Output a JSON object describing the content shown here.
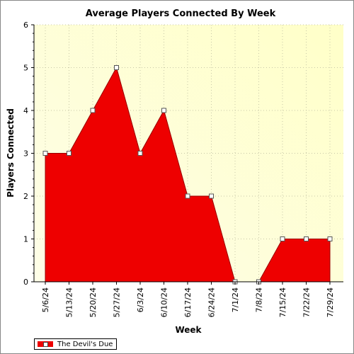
{
  "chart_data": {
    "type": "area",
    "title": "Average Players Connected By Week",
    "xlabel": "Week",
    "ylabel": "Players Connected",
    "categories": [
      "5/6/24",
      "5/13/24",
      "5/20/24",
      "5/27/24",
      "6/3/24",
      "6/10/24",
      "6/17/24",
      "6/24/24",
      "7/1/24",
      "7/8/24",
      "7/15/24",
      "7/22/24",
      "7/29/24"
    ],
    "series": [
      {
        "name": "The Devil's Due",
        "color": "#ee0000",
        "values": [
          3,
          3,
          4,
          5,
          3,
          4,
          2,
          2,
          0,
          0,
          1,
          1,
          1
        ]
      }
    ],
    "ylim": [
      0,
      6
    ],
    "yticks": [
      0,
      1,
      2,
      3,
      4,
      5,
      6
    ],
    "grid": true,
    "legend_position": "bottom-left",
    "plot_background": [
      "#fefee8",
      "#ffffc8"
    ]
  }
}
